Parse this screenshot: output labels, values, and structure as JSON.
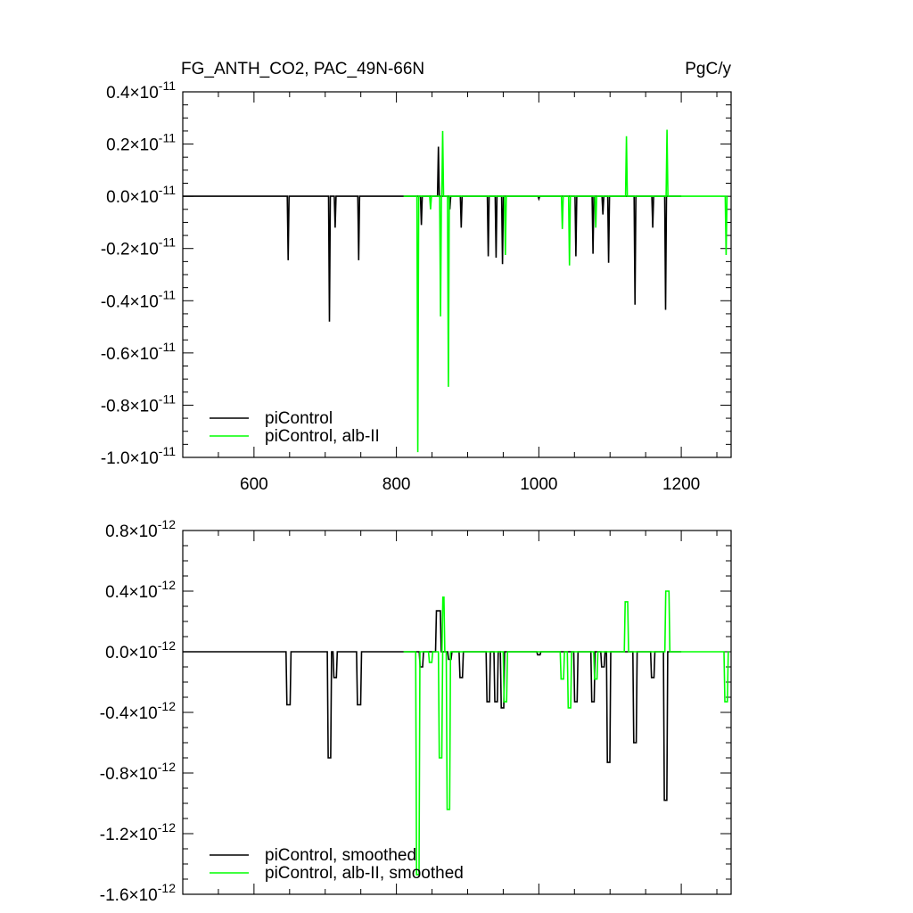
{
  "header": {
    "left_title": "FG_ANTH_CO2, PAC_49N-66N",
    "right_title": "PgC/y"
  },
  "chart_data": [
    {
      "type": "line",
      "panel": "top",
      "xlim": [
        500,
        1270
      ],
      "ylim": [
        -1e-11,
        4e-12
      ],
      "x_ticks": [
        600,
        800,
        1000,
        1200
      ],
      "x_tick_labels": [
        "600",
        "800",
        "1000",
        "1200"
      ],
      "y_ticks": [
        4e-12,
        2e-12,
        0.0,
        -2e-12,
        -4e-12,
        -6e-12,
        -8e-12,
        -1e-11
      ],
      "y_tick_mantissas": [
        "0.4",
        "0.2",
        "0.0",
        "-0.2",
        "-0.4",
        "-0.6",
        "-0.8",
        "-1.0"
      ],
      "y_tick_exponent": "-11",
      "legend": "bottom-left",
      "series": [
        {
          "name": "piControl",
          "color": "#000000",
          "x_range": [
            500,
            1200
          ],
          "spikes": [
            [
              648,
              -2.45e-12
            ],
            [
              706,
              -4.8e-12
            ],
            [
              714,
              -1.2e-12
            ],
            [
              747,
              -2.45e-12
            ],
            [
              835,
              -1.1e-12
            ],
            [
              859,
              1.9e-12
            ],
            [
              875,
              -5e-13
            ],
            [
              891,
              -1.2e-12
            ],
            [
              929,
              -2.3e-12
            ],
            [
              940,
              -2.35e-12
            ],
            [
              949,
              -2.6e-12
            ],
            [
              1000,
              -1e-13
            ],
            [
              1052,
              -2.3e-12
            ],
            [
              1076,
              -2.2e-12
            ],
            [
              1090,
              -7e-13
            ],
            [
              1098,
              -2.55e-12
            ],
            [
              1135,
              -4.15e-12
            ],
            [
              1160,
              -1.2e-12
            ],
            [
              1178,
              -4.35e-12
            ]
          ]
        },
        {
          "name": "piControl, alb-II",
          "color": "#00ff00",
          "x_range": [
            810,
            1265
          ],
          "spikes": [
            [
              830,
              -9.8e-12
            ],
            [
              848,
              -5e-13
            ],
            [
              862,
              -4.6e-12
            ],
            [
              865,
              2.5e-12
            ],
            [
              873,
              -7.3e-12
            ],
            [
              953,
              -2.25e-12
            ],
            [
              1033,
              -1.25e-12
            ],
            [
              1043,
              -2.65e-12
            ],
            [
              1080,
              -1.2e-12
            ],
            [
              1123,
              2.3e-12
            ],
            [
              1180,
              2.55e-12
            ],
            [
              1263,
              -2.25e-12
            ]
          ]
        }
      ]
    },
    {
      "type": "line",
      "panel": "bottom",
      "xlim": [
        500,
        1270
      ],
      "ylim": [
        -1.6e-12,
        8e-13
      ],
      "x_ticks": [
        600,
        800,
        1000,
        1200
      ],
      "x_tick_labels": [],
      "y_ticks": [
        8e-13,
        4e-13,
        0.0,
        -4e-13,
        -8e-13,
        -1.2e-12,
        -1.6e-12
      ],
      "y_tick_mantissas": [
        "0.8",
        "0.4",
        "0.0",
        "-0.4",
        "-0.8",
        "-1.2",
        "-1.6"
      ],
      "y_tick_exponent": "-12",
      "legend": "bottom-left",
      "series": [
        {
          "name": "piControl, smoothed",
          "color": "#000000",
          "x_range": [
            500,
            1200
          ],
          "boxes": [
            [
              645,
              652,
              -3.5e-13
            ],
            [
              703,
              709,
              -7e-13
            ],
            [
              711,
              717,
              -1.7e-13
            ],
            [
              744,
              751,
              -3.5e-13
            ],
            [
              832,
              838,
              -1e-13
            ],
            [
              855,
              863,
              2.7e-13
            ],
            [
              872,
              878,
              -5e-14
            ],
            [
              888,
              894,
              -1.7e-13
            ],
            [
              926,
              932,
              -3.3e-13
            ],
            [
              937,
              943,
              -3.3e-13
            ],
            [
              946,
              952,
              -3.7e-13
            ],
            [
              997,
              1003,
              -2e-14
            ],
            [
              1049,
              1055,
              -3.3e-13
            ],
            [
              1073,
              1079,
              -3.3e-13
            ],
            [
              1087,
              1093,
              -1e-13
            ],
            [
              1095,
              1101,
              -7.3e-13
            ],
            [
              1132,
              1138,
              -6e-13
            ],
            [
              1157,
              1163,
              -1.7e-13
            ],
            [
              1175,
              1181,
              -9.8e-13
            ]
          ]
        },
        {
          "name": "piControl, alb-II, smoothed",
          "color": "#00ff00",
          "x_range": [
            810,
            1265
          ],
          "boxes": [
            [
              827,
              833,
              -1.47e-12
            ],
            [
              845,
              851,
              -7e-14
            ],
            [
              859,
              865,
              -7e-13
            ],
            [
              864,
              868,
              3.6e-13
            ],
            [
              870,
              876,
              -1.04e-12
            ],
            [
              950,
              956,
              -3.3e-13
            ],
            [
              1030,
              1036,
              -1.8e-13
            ],
            [
              1040,
              1046,
              -3.7e-13
            ],
            [
              1077,
              1083,
              -1.8e-13
            ],
            [
              1120,
              1126,
              3.3e-13
            ],
            [
              1177,
              1184,
              4e-13
            ],
            [
              1260,
              1266,
              -3.3e-13
            ]
          ]
        }
      ]
    }
  ]
}
